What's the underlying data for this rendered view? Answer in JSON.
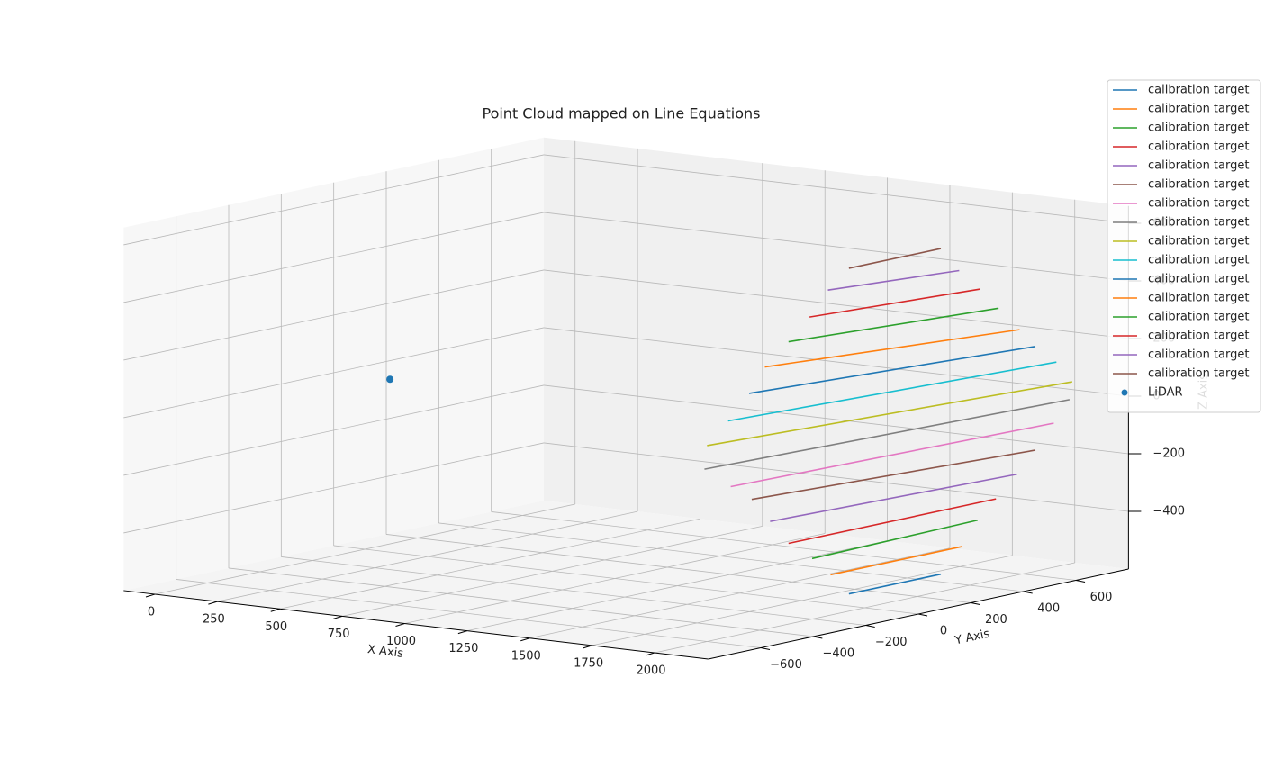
{
  "chart_data": {
    "type": "line3d",
    "title": "Point Cloud mapped on Line Equations",
    "xlabel": "X Axis",
    "ylabel": "Y Axis",
    "zlabel": "Z Axis",
    "xlim": [
      -125,
      2215
    ],
    "ylim": [
      -800,
      800
    ],
    "zlim": [
      -600,
      660
    ],
    "xticks": [
      0,
      250,
      500,
      750,
      1000,
      1250,
      1500,
      1750,
      2000
    ],
    "yticks": [
      {
        "value": -600,
        "label": "−600"
      },
      {
        "value": -400,
        "label": "−400"
      },
      {
        "value": -200,
        "label": "−200"
      },
      0,
      200,
      400,
      600
    ],
    "zticks": [
      {
        "value": -400,
        "label": "−400"
      },
      {
        "value": -200,
        "label": "−200"
      },
      0,
      200,
      400,
      600
    ],
    "grid": true,
    "legend": "upper right",
    "series": [
      {
        "name": "calibration target",
        "color": "#1f77b4",
        "x": [
          2000,
          2000
        ],
        "y": [
          -60,
          290
        ],
        "z": [
          -540,
          -540
        ]
      },
      {
        "name": "calibration target",
        "color": "#ff7f0e",
        "x": [
          2000,
          2000
        ],
        "y": [
          -130,
          370
        ],
        "z": [
          -460,
          -460
        ]
      },
      {
        "name": "calibration target",
        "color": "#2ca02c",
        "x": [
          2000,
          2000
        ],
        "y": [
          -200,
          430
        ],
        "z": [
          -390,
          -380
        ]
      },
      {
        "name": "calibration target",
        "color": "#d62728",
        "x": [
          2000,
          2000
        ],
        "y": [
          -290,
          500
        ],
        "z": [
          -320,
          -320
        ]
      },
      {
        "name": "calibration target",
        "color": "#9467bd",
        "x": [
          2000,
          2000
        ],
        "y": [
          -360,
          580
        ],
        "z": [
          -230,
          -250
        ]
      },
      {
        "name": "calibration target",
        "color": "#8c564b",
        "x": [
          2000,
          2000
        ],
        "y": [
          -430,
          650
        ],
        "z": [
          -140,
          -180
        ]
      },
      {
        "name": "calibration target",
        "color": "#e377c2",
        "x": [
          2000,
          2000
        ],
        "y": [
          -510,
          720
        ],
        "z": [
          -80,
          -100
        ]
      },
      {
        "name": "calibration target",
        "color": "#7f7f7f",
        "x": [
          2000,
          2000
        ],
        "y": [
          -610,
          780
        ],
        "z": [
          0,
          -30
        ]
      },
      {
        "name": "calibration target",
        "color": "#bcbd22",
        "x": [
          2000,
          2000
        ],
        "y": [
          -600,
          790
        ],
        "z": [
          80,
          30
        ]
      },
      {
        "name": "calibration target",
        "color": "#17becf",
        "x": [
          2000,
          2000
        ],
        "y": [
          -520,
          730
        ],
        "z": [
          150,
          110
        ]
      },
      {
        "name": "calibration target",
        "color": "#1f77b4",
        "x": [
          2000,
          2000
        ],
        "y": [
          -440,
          650
        ],
        "z": [
          230,
          180
        ]
      },
      {
        "name": "calibration target",
        "color": "#ff7f0e",
        "x": [
          2000,
          2000
        ],
        "y": [
          -380,
          590
        ],
        "z": [
          310,
          250
        ]
      },
      {
        "name": "calibration target",
        "color": "#2ca02c",
        "x": [
          2000,
          2000
        ],
        "y": [
          -290,
          510
        ],
        "z": [
          380,
          340
        ]
      },
      {
        "name": "calibration target",
        "color": "#d62728",
        "x": [
          2000,
          2000
        ],
        "y": [
          -210,
          440
        ],
        "z": [
          450,
          420
        ]
      },
      {
        "name": "calibration target",
        "color": "#9467bd",
        "x": [
          2000,
          2000
        ],
        "y": [
          -140,
          360
        ],
        "z": [
          530,
          500
        ]
      },
      {
        "name": "calibration target",
        "color": "#8c564b",
        "x": [
          2000,
          2000
        ],
        "y": [
          -60,
          290
        ],
        "z": [
          590,
          590
        ]
      },
      {
        "name": "LiDAR",
        "kind": "scatter",
        "color": "#1f77b4",
        "x": [
          100
        ],
        "y": [
          0
        ],
        "z": [
          0
        ]
      }
    ]
  }
}
